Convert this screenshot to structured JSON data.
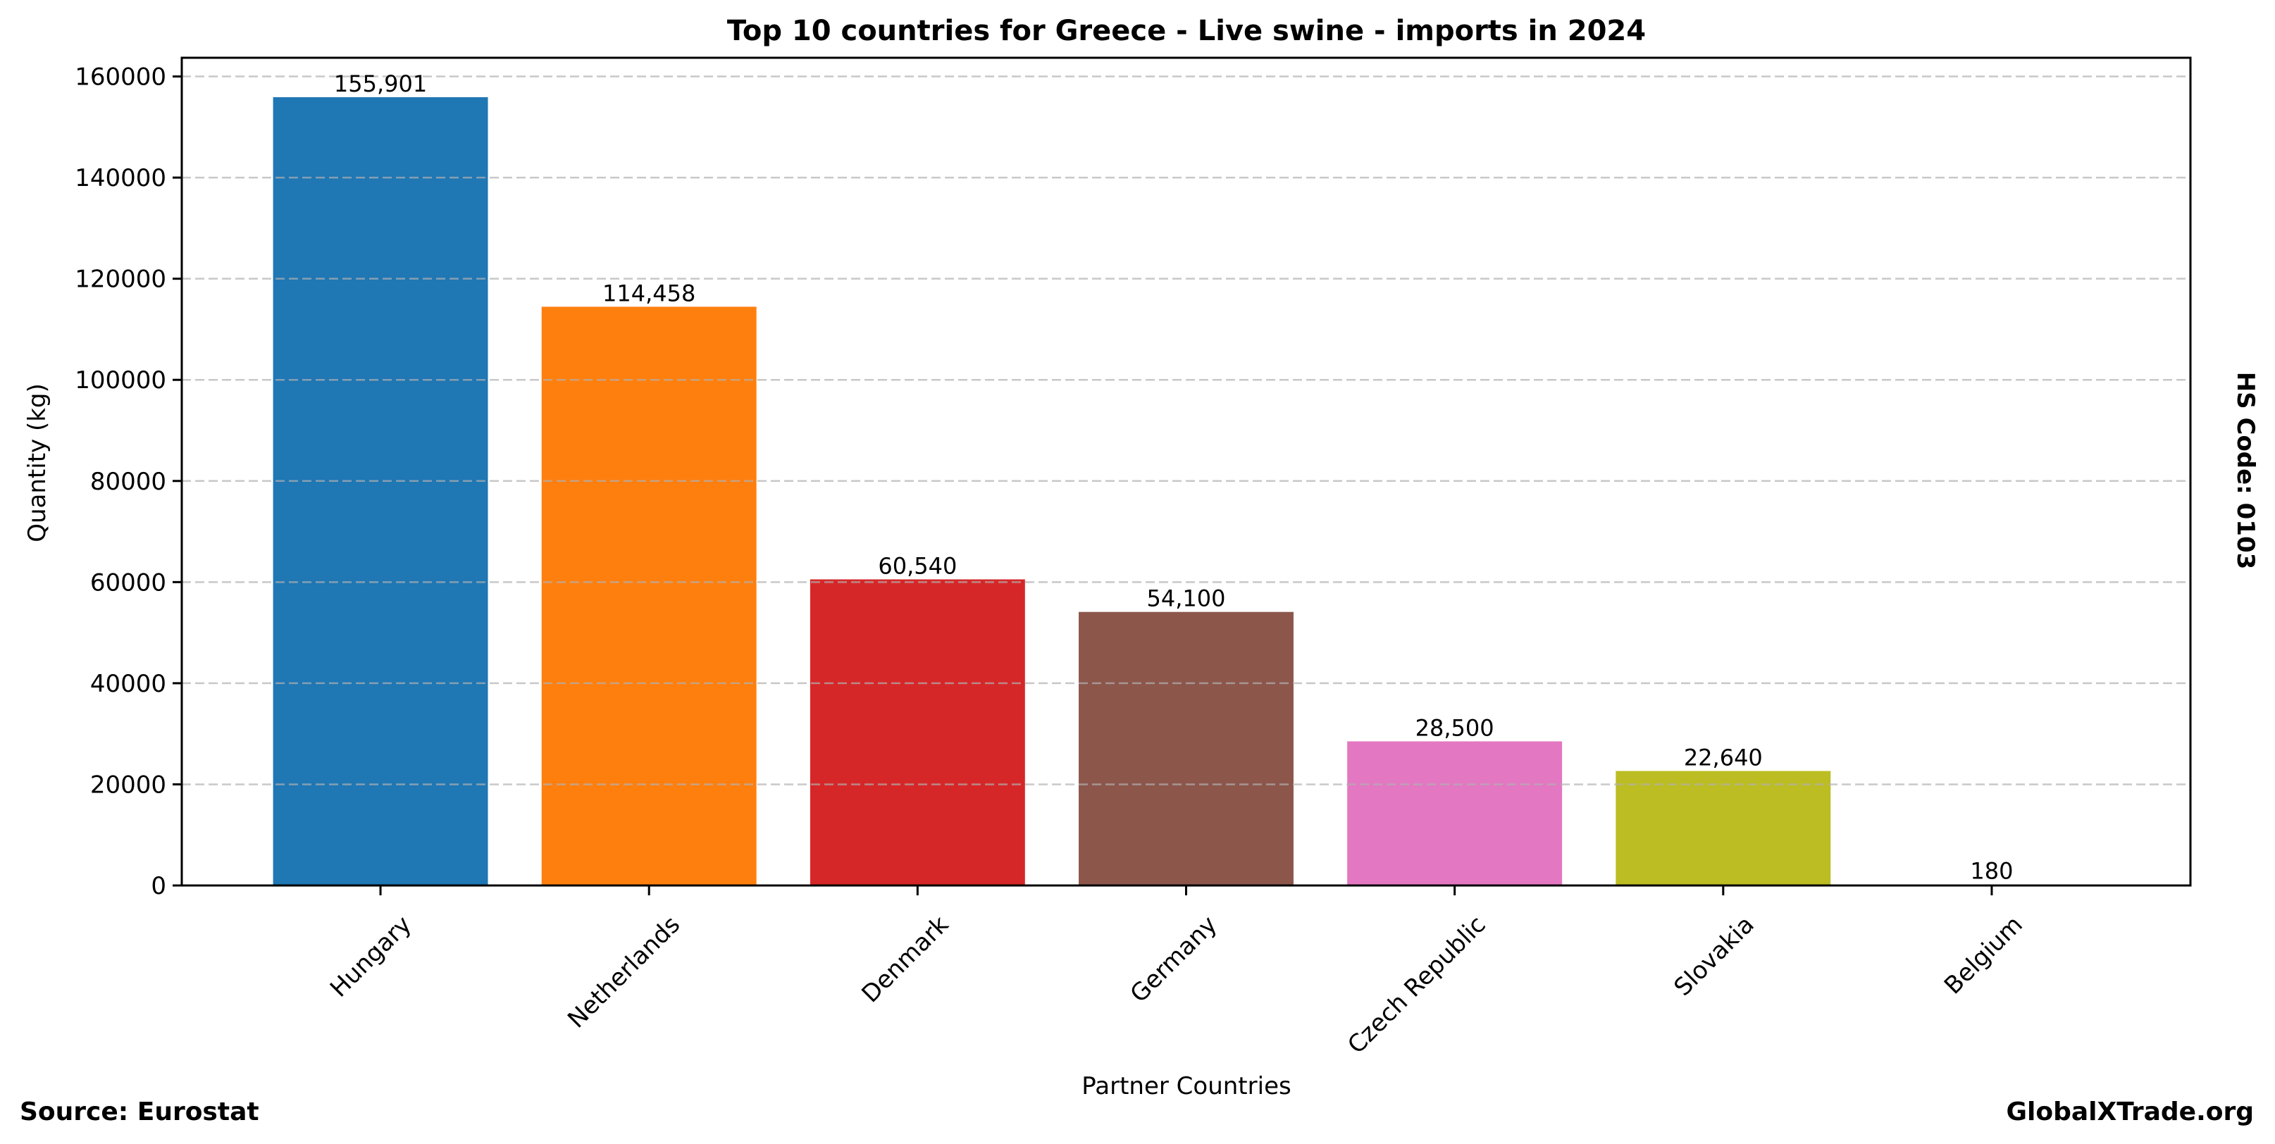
{
  "chart_data": {
    "type": "bar",
    "title": "Top 10 countries for Greece - Live swine - imports in 2024",
    "xlabel": "Partner Countries",
    "ylabel": "Quantity (kg)",
    "categories": [
      "Hungary",
      "Netherlands",
      "Denmark",
      "Germany",
      "Czech Republic",
      "Slovakia",
      "Belgium"
    ],
    "values": [
      155901,
      114458,
      60540,
      54100,
      28500,
      22640,
      180
    ],
    "value_labels": [
      "155,901",
      "114,458",
      "60,540",
      "54,100",
      "28,500",
      "22,640",
      "180"
    ],
    "colors": [
      "#1f77b4",
      "#ff7f0e",
      "#d62728",
      "#8c564b",
      "#e377c2",
      "#bcbd22",
      "#17becf"
    ],
    "ylim": [
      0,
      163700
    ],
    "yticks": [
      0,
      20000,
      40000,
      60000,
      80000,
      100000,
      120000,
      140000,
      160000
    ],
    "ytick_labels": [
      "0",
      "20000",
      "40000",
      "60000",
      "80000",
      "100000",
      "120000",
      "140000",
      "160000"
    ],
    "grid": "y-dashed",
    "xtick_rotation_deg": 45,
    "legend": "none"
  },
  "annotations": {
    "source": "Source: Eurostat",
    "brand": "GlobalXTrade.org",
    "hs_code": "HS Code: 0103"
  }
}
